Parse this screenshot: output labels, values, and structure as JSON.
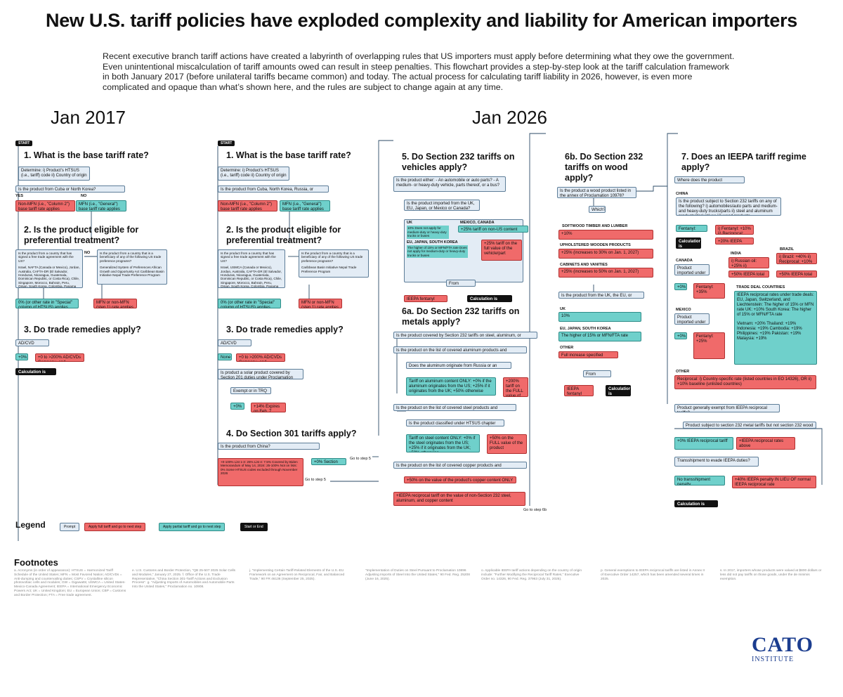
{
  "title": "New U.S. tariff policies have exploded complexity and liability for American importers",
  "intro": "Recent executive branch tariff actions have created a labyrinth of overlapping rules that US importers must apply before determining what they owe the government. Even unintentional miscalculation of tariff amounts owed can result in steep penalties. This flowchart provides a step-by-step look at the tariff calculation framework in both January 2017 (before unilateral tariffs became common) and today. The actual process for calculating tariff liability in 2026, however, is even more complicated and opaque than what’s shown here, and the rules are subject to change again at any time.",
  "eras": {
    "left": "Jan 2017",
    "right": "Jan 2026"
  },
  "common": {
    "start": "START",
    "yes": "YES",
    "no": "NO",
    "calc_finished": "Calculation is finished."
  },
  "steps": {
    "s1": "1. What is the base tariff rate?",
    "s2": "2. Is the product eligible for preferential treatment?",
    "s3": "3. Do trade remedies apply?",
    "s4": "4. Do Section 301 tariffs apply?",
    "s5": "5. Do Section 232 tariffs on vehicles apply?",
    "s6a": "6a. Do Section 232 tariffs on metals apply?",
    "s6b": "6b. Do Section 232 tariffs on wood apply?",
    "s7": "7. Does an IEEPA tariff regime apply?"
  },
  "left": {
    "determine": "Determine: i) Product's HTSUS (i.e., tariff) code ii) Country of origin",
    "cuba_q": "Is the product from Cuba or North Korea?",
    "non_mfn": "Non-MFN (i.e., \"Column 2\") base tariff rate applies",
    "mfn": "MFN (i.e., \"General\") base tariff rate applies",
    "fta_q": "Is the product from a country that has signed a free trade agreement with the US?",
    "fta_list": "Israel, NAFTA (Canada or Mexico), Jordan, Australia, CAFTA-DR (El Salvador, Honduras, Nicaragua, Guatemala, Dominican Republic, or Costa Rica), Chile, Singapore, Morocco, Bahrain, Peru, Oman, South Korea, Colombia, Panama",
    "pref_q": "Is the product from a country that is a beneficiary of any of the following US trade preference programs?",
    "pref_list": "Generalized System of Preferences African Growth and Opportunity Act Caribbean Basin Initiative Nepal Trade Preference Program",
    "special": "0% (or other rate in \"Special\" column of HTSUS) applies",
    "non_mfn2": "MFN or non-MFN (step 1) rate applies",
    "adcvd_q": "AD/CVD orders?",
    "zero": "+0%",
    "adcvd_r": "+0 to >200% AD/CVDs Company- and product-specific"
  },
  "mid": {
    "cuba_q": "Is the product from Cuba, North Korea, Russia, or Belarus?",
    "pref_list": "Caribbean Basin Initiative Nepal Trade Preference Program",
    "fta_list": "Israel, USMCA (Canada or Mexico), Jordan, Australia, CAFTA-DR (El Salvador, Honduras, Nicaragua, Guatemala, Dominican Republic, or Costa Rica), Chile, Singapore, Morocco, Bahrain, Peru, Oman, South Korea, Colombia, Panama",
    "none": "None",
    "solar_q": "Is product a solar product covered by Section 201 duties under Proclamation 10339?",
    "exempt_q": "Exempt or in TRQ quota?",
    "r14": "+14% Expires on Feb. 7, 2026",
    "china_q": "Is the product from China?",
    "s301_r": "+0-100% List 1-3: 25% List 4: 7.5% Covered by Biden Memorandum of May 14, 2024: 25-100% Not on lists: 0% Some HTSUS codes excluded through November 2026",
    "s301_t": "+0% Section 301",
    "goto5": "Go to step 5"
  },
  "col5": {
    "veh_q": "Is the product either: - An automobile or auto parts? - A medium- or heavy-duty vehicle, parts thereof, or a bus?",
    "uk_q": "Is the product imported from the UK, EU, Japan, or Mexico or Canada?",
    "uk": "UK",
    "uk_r": "10% Does not apply for medium-duty or heavy-duty trucks or buses",
    "mexcan": "MEXICO, CANADA",
    "mexcan_r": "+25% tariff on non-US content only",
    "eu": "EU, JAPAN, SOUTH KOREA",
    "eu_r": "The higher of 15% or MFN/FTA rate Does not apply for medium-duty or heavy-duty trucks or buses",
    "full": "+25% tariff on the full value of the vehicle/part",
    "china_q": "From China?",
    "ieepa10": "IEEPA fentanyl tariff: +10%",
    "metal_q": "Is the product covered by Section 232 tariffs on steel, aluminum, or copper?",
    "alum_list_q": "Is the product on the list of covered aluminum products and derivatives",
    "russia_q": "Does the aluminum originate from Russia or an unknown country?",
    "alum_t": "Tariff on aluminum content ONLY: +0% if the aluminum originates from the US; +25% if it originates from the UK; +50% otherwise",
    "alum_r": "+200% tariff on the FULL value of the product.",
    "steel_list_q": "Is the product on the list of covered steel products and derivatives?",
    "ch72_q": "Is the product classified under HTSUS chapter 72?",
    "steel_t": "Tariff on steel content ONLY: +0% if the steel originates from the US; +25% if it originates from the UK; +50% otherwise",
    "steel_r": "+50% on the FULL value of the product",
    "copper_q": "Is the product on the list of covered copper products and derivatives?",
    "copper_r": "+50% on the value of the product's copper content ONLY",
    "ieepa_r": "+IEEPA reciprocal tariff on the value of non-Section 232 steel, aluminum, and copper content",
    "goto6b": "Go to step 6b"
  },
  "col6": {
    "wood_q": "Is the product a wood product listed in the annex of Proclamation 10976?",
    "which": "Which?",
    "soft": "SOFTWOOD TIMBER AND LUMBER",
    "soft_r": "+10%",
    "uph": "UPHOLSTERED WOODEN PRODUCTS",
    "uph_r": "+25% (increases to 30% on Jan. 1, 2027)",
    "cab": "CABINETS AND VANITIES",
    "cab_r": "+25% (increases to 50% on Jan. 1, 2027)",
    "ukeu_q": "Is the product from the UK, the EU, or Japan?",
    "uk": "UK",
    "uk_r": "10%",
    "eu": "EU, JAPAN, SOUTH KOREA",
    "eu_r": "The higher of 15% or MFN/FTA rate",
    "other": "OTHER",
    "other_r": "Full increase specified above",
    "china_q": "From China?",
    "fent": "IEEPA fentanyl tariff: +10%"
  },
  "col7": {
    "origin_q": "Where does the product originate?",
    "china": "CHINA",
    "china_q": "Is the product subject to Section 232 tariffs on any of the following? i) automobiles/auto parts and medium- and heavy-duty trucks/parts ii) steel and aluminum products/derivatives iii) wood products",
    "fent10": "Fentanyl: +10%",
    "fr": "i) Fentanyl: +10% ii) Reciprocal: +10%",
    "total20": "+20% IEEPA total",
    "canada": "CANADA",
    "usmca_q": "Product imported under USMCA?",
    "ca35": "Fentanyl: +35%",
    "mexico": "MEXICO",
    "mx25": "Fentanyl: +25%",
    "india": "INDIA",
    "india_r": "i) Russian oil: +25% ii) Reciprocal: +25%",
    "total50": "+50% IEEPA total",
    "brazil": "BRAZIL",
    "brazil_r": "i) Brazil: +40% ii) Reciprocal: +10%",
    "tdc": "TRADE DEAL COUNTRIES",
    "tdc_body": "IEEPA reciprocal rates under trade deals: EU, Japan, Switzerland, and Liechtenstein: The higher of 15% or MFN rate UK: +10% South Korea: The higher of 15% or MFN/FTA rate",
    "tdc_list": "Vietnam: +20% Thailand: +19% Indonesia: +19% Cambodia: +19% Philippines: +19% Pakistan: +19% Malaysia: +19%",
    "other": "OTHER",
    "other_r": "Reciprocal: i) Country-specific rate (listed countries in EO 14326), OR ii) +10% baseline (unlisted countries)",
    "exempt_q": "Product generally exempt from IEEPA reciprocal tariffs?",
    "s232_q": "Product subject to section 232 metal tariffs but not section 232 wood tariffs?",
    "zero": "+0% IEEPA reciprocal tariff",
    "recip": "+IEEPA reciprocal rates above",
    "trans_q": "Transshipment to evade IEEPA duties?",
    "no_pen": "No transshipment penalty",
    "pen": "+40% IEEPA penalty IN LIEU OF normal IEEPA reciprocal rate"
  },
  "legend": {
    "title": "Legend",
    "prompt": "Prompt",
    "full": "Apply full tariff and go to next step",
    "partial": "Apply partial tariff and go to next step",
    "start": "Start or End"
  },
  "footnotes": {
    "title": "Footnotes",
    "c1": "a. Acronyms (in order of appearance): HTSUS = Harmonized Tariff Schedule of the United States; MFN = Most Favored Nation; AD/CVDs = Anti-dumping and countervailing duties; CSPV = Crystalline silicon photovoltaic cells and modules; GW = Gigawatts; USMCA = United States-Mexico-Canada Agreement; IEEPA = International Emergency Economic Powers Act; UK = United Kingdom; EU = European Union; CBP = Customs and Border Protection; FTA = Free trade agreement.",
    "c2": "e. U.S. Customs and Border Protection, \"QB 25-507 2025 Solar Cells and Modules,\" January 27, 2025. f. Office of the U.S. Trade Representative, \"China Section 301-Tariff Actions and Exclusion Process\". g. \"Adjusting Imports of Automobiles and Automobile Parts Into the United States,\" Proclamation no. 10908.",
    "c3": "j. \"Implementing Certain Tariff-Related Elements of the U.S.-EU Framework on an Agreement on Reciprocal, Fair, and Balanced Trade,\" 90 FR 46136 (September 25, 2025).",
    "c4": "\"Implementation of Duties on Steel Pursuant to Proclamation 10896 Adjusting Imports of Steel Into the United States,\" 90 Fed. Reg. 25208 (June 16, 2025).",
    "c5": "o. Applicable IEEPA tariff actions depending on the country of origin include: \"Further Modifying the Reciprocal Tariff Rates,\" Executive Order no. 14326, 90 Fed. Reg. 37963 (July 31, 2025).",
    "c6": "p. General exemptions to IEEPA reciprocal tariffs are listed in Annex II of Executive Order 14257, which has been amended several times in 2025.",
    "c7": "s. In 2017, importers whose products were valued at $800 dollars or less did not pay tariffs on those goods, under the de minimis exemption."
  },
  "brand": {
    "name": "CATO",
    "sub": "INSTITUTE"
  },
  "colors": {
    "prompt": "#e3ecf5",
    "full": "#f06a6a",
    "partial": "#6fd0cb",
    "terminal": "#111111"
  }
}
